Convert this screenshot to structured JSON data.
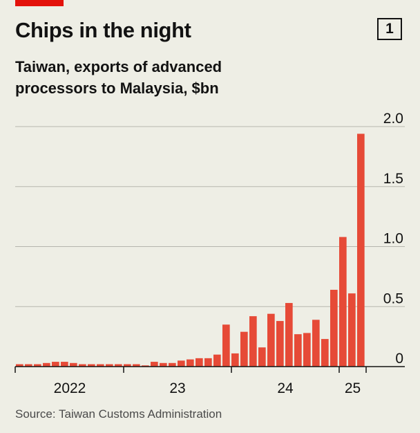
{
  "header": {
    "title": "Chips in the night",
    "chart_number": "1",
    "subtitle": "Taiwan, exports of advanced processors to Malaysia, $bn"
  },
  "footer": {
    "source": "Source: Taiwan Customs Administration"
  },
  "colors": {
    "bar": "#e64a37",
    "accent": "#e3120b",
    "grid": "#b5b5ad",
    "axis": "#121212",
    "background": "#eeeee5"
  },
  "chart_data": {
    "type": "bar",
    "title": "Chips in the night",
    "subtitle": "Taiwan, exports of advanced processors to Malaysia, $bn",
    "xlabel": "",
    "ylabel": "$bn",
    "ylim": [
      0,
      2.0
    ],
    "yticks": [
      0,
      0.5,
      1.0,
      1.5,
      2.0
    ],
    "ytick_labels": [
      "0",
      "0.5",
      "1.0",
      "1.5",
      "2.0"
    ],
    "grid": true,
    "year_ticks": [
      {
        "label": "2022",
        "start_index": 0,
        "end_index": 12
      },
      {
        "label": "23",
        "start_index": 12,
        "end_index": 24
      },
      {
        "label": "24",
        "start_index": 24,
        "end_index": 36
      },
      {
        "label": "25",
        "start_index": 36,
        "end_index": 39
      }
    ],
    "categories": [
      "2022-01",
      "2022-02",
      "2022-03",
      "2022-04",
      "2022-05",
      "2022-06",
      "2022-07",
      "2022-08",
      "2022-09",
      "2022-10",
      "2022-11",
      "2022-12",
      "2023-01",
      "2023-02",
      "2023-03",
      "2023-04",
      "2023-05",
      "2023-06",
      "2023-07",
      "2023-08",
      "2023-09",
      "2023-10",
      "2023-11",
      "2023-12",
      "2024-01",
      "2024-02",
      "2024-03",
      "2024-04",
      "2024-05",
      "2024-06",
      "2024-07",
      "2024-08",
      "2024-09",
      "2024-10",
      "2024-11",
      "2024-12",
      "2025-01",
      "2025-02",
      "2025-03"
    ],
    "values": [
      0.02,
      0.02,
      0.02,
      0.03,
      0.04,
      0.04,
      0.03,
      0.02,
      0.02,
      0.02,
      0.02,
      0.02,
      0.02,
      0.02,
      0.01,
      0.04,
      0.03,
      0.03,
      0.05,
      0.06,
      0.07,
      0.07,
      0.1,
      0.35,
      0.11,
      0.29,
      0.42,
      0.16,
      0.44,
      0.38,
      0.53,
      0.27,
      0.28,
      0.39,
      0.23,
      0.64,
      1.08,
      0.61,
      1.94
    ]
  }
}
